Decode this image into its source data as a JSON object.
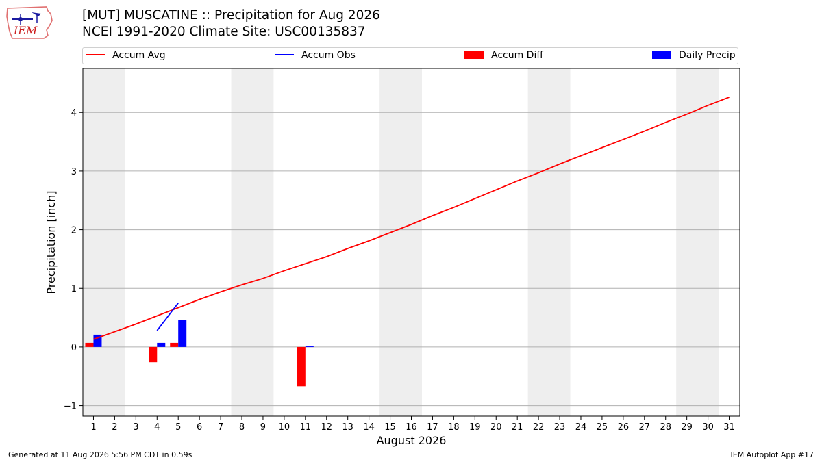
{
  "header": {
    "logo_text": "IEM",
    "title_line1": "[MUT] MUSCATINE :: Precipitation for Aug 2026",
    "title_line2": "NCEI 1991-2020 Climate Site: USC00135837"
  },
  "legend": [
    {
      "label": "Accum Avg",
      "color": "#ff0000",
      "shape": "line"
    },
    {
      "label": "Accum Obs",
      "color": "#0000ff",
      "shape": "line"
    },
    {
      "label": "Accum Diff",
      "color": "#ff0000",
      "shape": "box"
    },
    {
      "label": "Daily Precip",
      "color": "#0000ff",
      "shape": "box"
    }
  ],
  "footer": {
    "left": "Generated at 11 Aug 2026 5:56 PM CDT in 0.59s",
    "right": "IEM Autoplot App #17"
  },
  "chart_data": {
    "type": "bar",
    "xlabel": "August 2026",
    "ylabel": "Precipitation [inch]",
    "xlim": [
      0.5,
      31.5
    ],
    "ylim": [
      -1.18,
      4.75
    ],
    "x_ticks": [
      1,
      2,
      3,
      4,
      5,
      6,
      7,
      8,
      9,
      10,
      11,
      12,
      13,
      14,
      15,
      16,
      17,
      18,
      19,
      20,
      21,
      22,
      23,
      24,
      25,
      26,
      27,
      28,
      29,
      30,
      31
    ],
    "y_ticks": [
      -1,
      0,
      1,
      2,
      3,
      4
    ],
    "grid": "horizontal",
    "weekend_shading": [
      [
        0.5,
        2.5
      ],
      [
        7.5,
        9.5
      ],
      [
        14.5,
        16.5
      ],
      [
        21.5,
        23.5
      ],
      [
        28.5,
        30.5
      ]
    ],
    "legend_position": "top",
    "series": [
      {
        "name": "Accum Avg",
        "type": "line",
        "color": "#ff0000",
        "x": [
          1,
          2,
          3,
          4,
          5,
          6,
          7,
          8,
          9,
          10,
          11,
          12,
          13,
          14,
          15,
          16,
          17,
          18,
          19,
          20,
          21,
          22,
          23,
          24,
          25,
          26,
          27,
          28,
          29,
          30,
          31
        ],
        "values": [
          0.13,
          0.26,
          0.39,
          0.53,
          0.67,
          0.81,
          0.94,
          1.06,
          1.17,
          1.3,
          1.42,
          1.54,
          1.68,
          1.81,
          1.95,
          2.09,
          2.24,
          2.38,
          2.53,
          2.68,
          2.83,
          2.97,
          3.12,
          3.26,
          3.4,
          3.54,
          3.68,
          3.83,
          3.97,
          4.12,
          4.26
        ]
      },
      {
        "name": "Accum Obs",
        "type": "line",
        "color": "#0000ff",
        "x": [
          4,
          5
        ],
        "values": [
          0.28,
          0.75
        ]
      },
      {
        "name": "Accum Diff",
        "type": "bar",
        "color": "#ff0000",
        "x": [
          1,
          4,
          5,
          11
        ],
        "values": [
          0.07,
          -0.26,
          0.07,
          -0.67
        ]
      },
      {
        "name": "Daily Precip",
        "type": "bar",
        "color": "#0000ff",
        "x": [
          1,
          4,
          5,
          11
        ],
        "values": [
          0.21,
          0.07,
          0.46,
          0.01
        ]
      }
    ]
  }
}
